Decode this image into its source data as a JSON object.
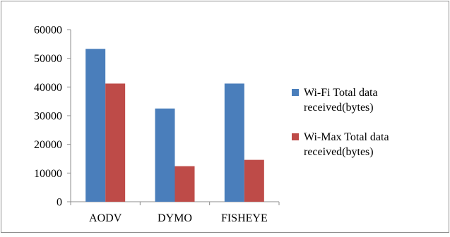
{
  "chart_data": {
    "type": "bar",
    "title": "",
    "xlabel": "",
    "ylabel": "",
    "categories": [
      "AODV",
      "DYMO",
      "FISHEYE"
    ],
    "series": [
      {
        "name": "Wi-Fi Total data received(bytes)",
        "legend_lines": [
          "Wi-Fi Total data",
          "received(bytes)"
        ],
        "color": "#4a7ebb",
        "values": [
          53300,
          32500,
          41200
        ]
      },
      {
        "name": "Wi-Max Total data received(bytes)",
        "legend_lines": [
          "Wi-Max Total data",
          "received(bytes)"
        ],
        "color": "#be4b48",
        "values": [
          41200,
          12400,
          14600
        ]
      }
    ],
    "ylim": [
      0,
      60000
    ],
    "yticks": [
      "0",
      "10000",
      "20000",
      "30000",
      "40000",
      "50000",
      "60000"
    ],
    "grid": false,
    "legend_position": "right"
  }
}
